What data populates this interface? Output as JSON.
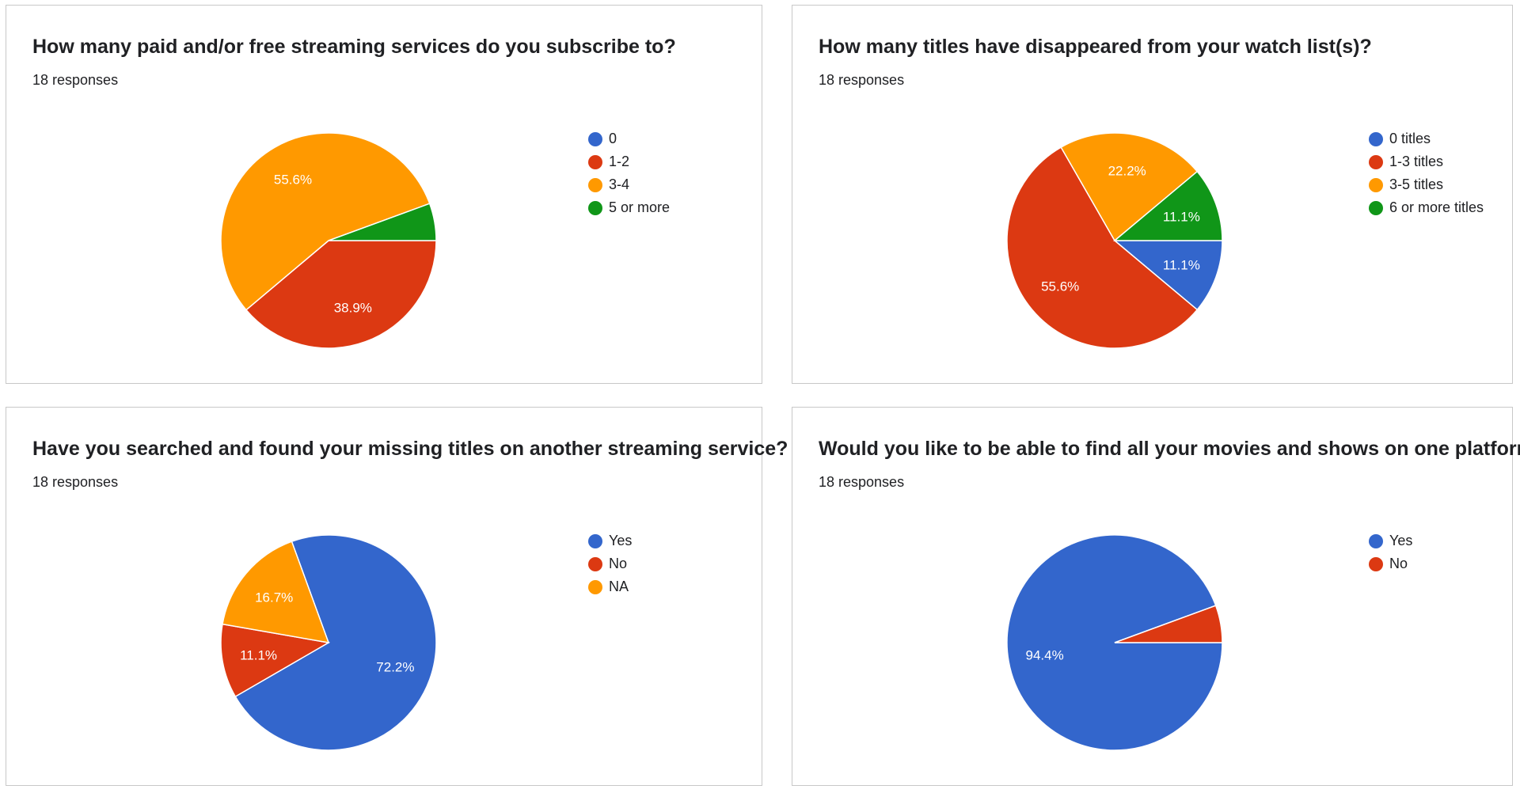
{
  "chart_data": [
    {
      "type": "pie",
      "title": "How many paid and/or free streaming services do you subscribe to?",
      "subtitle": "18 responses",
      "categories": [
        "0",
        "1-2",
        "3-4",
        "5 or more"
      ],
      "values": [
        0,
        38.9,
        55.6,
        5.6
      ],
      "labels": [
        "",
        "38.9%",
        "55.6%",
        ""
      ],
      "colors": [
        "#3366cc",
        "#dc3912",
        "#ff9900",
        "#109618"
      ],
      "legend": "right"
    },
    {
      "type": "pie",
      "title": "How many titles have disappeared from your watch list(s)?",
      "subtitle": "18 responses",
      "categories": [
        "0 titles",
        "1-3 titles",
        "3-5 titles",
        "6 or more titles"
      ],
      "values": [
        11.1,
        55.6,
        22.2,
        11.1
      ],
      "labels": [
        "11.1%",
        "55.6%",
        "22.2%",
        "11.1%"
      ],
      "colors": [
        "#3366cc",
        "#dc3912",
        "#ff9900",
        "#109618"
      ],
      "legend": "right"
    },
    {
      "type": "pie",
      "title": "Have you searched and found your missing titles on another streaming service?",
      "subtitle": "18 responses",
      "categories": [
        "Yes",
        "No",
        "NA"
      ],
      "values": [
        72.2,
        11.1,
        16.7
      ],
      "labels": [
        "72.2%",
        "11.1%",
        "16.7%"
      ],
      "colors": [
        "#3366cc",
        "#dc3912",
        "#ff9900"
      ],
      "legend": "right"
    },
    {
      "type": "pie",
      "title": "Would you like to be able to find all your movies and shows on one platform?",
      "subtitle": "18 responses",
      "categories": [
        "Yes",
        "No"
      ],
      "values": [
        94.4,
        5.6
      ],
      "labels": [
        "94.4%",
        ""
      ],
      "colors": [
        "#3366cc",
        "#dc3912"
      ],
      "legend": "right"
    }
  ]
}
